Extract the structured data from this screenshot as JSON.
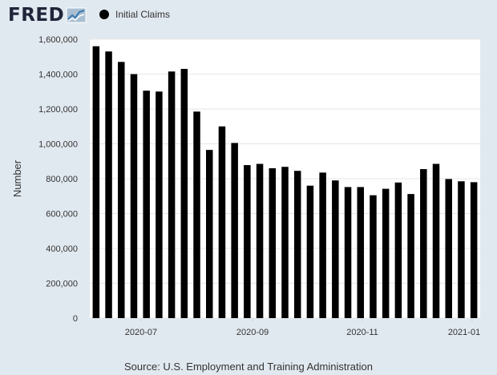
{
  "logo": {
    "text": "FRED"
  },
  "legend": {
    "label": "Initial Claims"
  },
  "source": "Source: U.S. Employment and Training Administration",
  "colors": {
    "background": "#e1e9f0",
    "plot_background": "#ffffff",
    "bars": "#000000",
    "grid": "#e6e6e6",
    "axis_text": "#333333"
  },
  "chart_data": {
    "type": "bar",
    "title": "",
    "xlabel": "",
    "ylabel": "Number",
    "ylim": [
      0,
      1600000
    ],
    "yticks": [
      0,
      200000,
      400000,
      600000,
      800000,
      1000000,
      1200000,
      1400000,
      1600000
    ],
    "ytick_labels": [
      "0",
      "200,000",
      "400,000",
      "600,000",
      "800,000",
      "1,000,000",
      "1,200,000",
      "1,400,000",
      "1,600,000"
    ],
    "xtick_labels": [
      "2020-07",
      "2020-09",
      "2020-11",
      "2021-01"
    ],
    "xtick_positions": [
      "2020-07-01",
      "2020-09-01",
      "2020-11-01",
      "2021-01-01"
    ],
    "grid": true,
    "legend": "top-left",
    "series": [
      {
        "name": "Initial Claims",
        "x": [
          "2020-06-06",
          "2020-06-13",
          "2020-06-20",
          "2020-06-27",
          "2020-07-04",
          "2020-07-11",
          "2020-07-18",
          "2020-07-25",
          "2020-08-01",
          "2020-08-08",
          "2020-08-15",
          "2020-08-22",
          "2020-08-29",
          "2020-09-05",
          "2020-09-12",
          "2020-09-19",
          "2020-09-26",
          "2020-10-03",
          "2020-10-10",
          "2020-10-17",
          "2020-10-24",
          "2020-10-31",
          "2020-11-07",
          "2020-11-14",
          "2020-11-21",
          "2020-11-28",
          "2020-12-05",
          "2020-12-12",
          "2020-12-19",
          "2020-12-26",
          "2021-01-02"
        ],
        "values": [
          1560000,
          1530000,
          1470000,
          1400000,
          1305000,
          1300000,
          1415000,
          1430000,
          1185000,
          965000,
          1100000,
          1005000,
          878000,
          885000,
          860000,
          868000,
          845000,
          760000,
          835000,
          790000,
          752000,
          752000,
          705000,
          742000,
          778000,
          712000,
          855000,
          885000,
          798000,
          785000,
          780000
        ]
      }
    ]
  }
}
